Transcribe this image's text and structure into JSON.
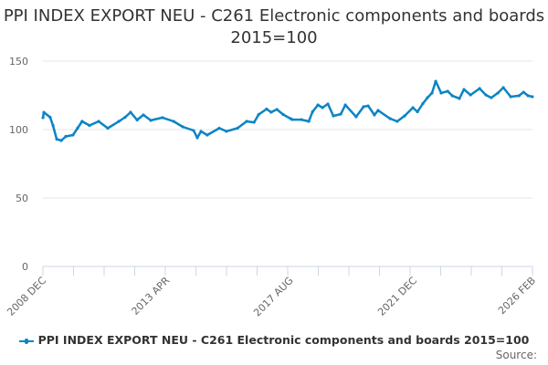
{
  "chart_data": {
    "type": "line",
    "title": "PPI INDEX EXPORT NEU - C261 Electronic components and boards 2015=100",
    "xlabel": "",
    "ylabel": "",
    "xlim": [
      2008.917,
      2026.083
    ],
    "ylim": [
      0,
      150
    ],
    "yticks": [
      0,
      50,
      100,
      150
    ],
    "xtick_labels": [
      {
        "label": "2008 DEC",
        "x": 2008.917
      },
      {
        "label": "2013 APR",
        "x": 2013.25
      },
      {
        "label": "2017 AUG",
        "x": 2017.583
      },
      {
        "label": "2021 DEC",
        "x": 2021.917
      },
      {
        "label": "2026 FEB",
        "x": 2026.083
      }
    ],
    "minor_tick_count": 16,
    "grid": true,
    "legend": {
      "placement": "bottom",
      "entries": [
        "PPI INDEX EXPORT NEU - C261 Electronic components and boards 2015=100"
      ]
    },
    "series": [
      {
        "name": "PPI INDEX EXPORT NEU - C261 Electronic components and boards 2015=100",
        "color": "#0a84c6",
        "x": [
          2008.92,
          2008.95,
          2009.17,
          2009.27,
          2009.4,
          2009.56,
          2009.72,
          2009.97,
          2010.13,
          2010.29,
          2010.55,
          2010.87,
          2011.19,
          2011.58,
          2011.8,
          2011.99,
          2012.22,
          2012.44,
          2012.7,
          2013.11,
          2013.5,
          2013.82,
          2014.2,
          2014.33,
          2014.46,
          2014.68,
          2015.1,
          2015.35,
          2015.74,
          2016.06,
          2016.32,
          2016.48,
          2016.76,
          2016.92,
          2017.12,
          2017.34,
          2017.6,
          2017.66,
          2017.98,
          2018.24,
          2018.37,
          2018.56,
          2018.72,
          2018.91,
          2019.1,
          2019.36,
          2019.52,
          2019.9,
          2020.16,
          2020.32,
          2020.54,
          2020.67,
          2021.09,
          2021.34,
          2021.6,
          2021.89,
          2022.05,
          2022.24,
          2022.4,
          2022.56,
          2022.69,
          2022.88,
          2023.11,
          2023.27,
          2023.52,
          2023.68,
          2023.91,
          2024.23,
          2024.45,
          2024.64,
          2024.87,
          2025.06,
          2025.32,
          2025.61,
          2025.77,
          2025.93,
          2026.08
        ],
        "y": [
          108.7,
          112.6,
          109,
          103,
          93,
          92,
          95,
          96,
          101,
          106,
          103,
          106,
          101,
          106,
          109,
          112.7,
          107,
          110.7,
          106.7,
          108.7,
          106,
          102,
          99.3,
          94,
          98.7,
          96,
          101,
          98.7,
          101,
          106,
          105.3,
          111,
          115,
          112.7,
          114.7,
          111,
          108,
          107.3,
          107.3,
          106,
          113,
          118,
          116,
          118.7,
          110,
          111.3,
          118,
          109.3,
          116.7,
          117.3,
          110.7,
          114,
          108,
          106,
          110,
          116,
          113,
          119,
          123.3,
          126.7,
          135.3,
          126.7,
          128,
          124.7,
          122.7,
          129.3,
          125.3,
          130,
          125.3,
          123.3,
          126.7,
          130.7,
          124,
          124.7,
          127.3,
          124.7,
          124
        ]
      }
    ]
  },
  "source_label": "Source:"
}
